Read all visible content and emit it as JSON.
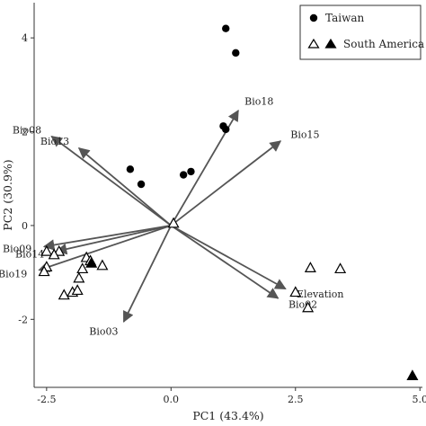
{
  "chart_data": {
    "type": "scatter",
    "xlabel": "PC1 (43.4%)",
    "ylabel": "PC2 (30.9%)",
    "xlim": [
      -2.75,
      5.05
    ],
    "ylim": [
      -3.45,
      4.75
    ],
    "x_ticks": [
      {
        "value": -2.5,
        "label": "-2.5"
      },
      {
        "value": 0.0,
        "label": "0.0"
      },
      {
        "value": 2.5,
        "label": "2.5"
      },
      {
        "value": 5.0,
        "label": "5.0"
      }
    ],
    "y_ticks": [
      {
        "value": 4,
        "label": "4"
      },
      {
        "value": 2,
        "label": "2"
      },
      {
        "value": 0,
        "label": "0"
      },
      {
        "value": -2,
        "label": "-2"
      }
    ],
    "grid": false,
    "legend_position": "top-right",
    "legend": [
      {
        "marker": "filled-circle",
        "label": "Taiwan"
      },
      {
        "marker": "open-and-filled-triangle",
        "label": "South America"
      }
    ],
    "colors": {
      "points": "#000000",
      "arrows": "#555555",
      "axes": "#333333"
    },
    "series": [
      {
        "name": "Taiwan",
        "marker": "filled-circle",
        "points": [
          {
            "x": 1.1,
            "y": 4.2
          },
          {
            "x": 1.3,
            "y": 3.68
          },
          {
            "x": 1.05,
            "y": 2.12
          },
          {
            "x": 1.1,
            "y": 2.05
          },
          {
            "x": -0.82,
            "y": 1.2
          },
          {
            "x": -0.6,
            "y": 0.88
          },
          {
            "x": 0.25,
            "y": 1.08
          },
          {
            "x": 0.4,
            "y": 1.15
          }
        ]
      },
      {
        "name": "South America",
        "marker": "open-triangle",
        "points": [
          {
            "x": 0.05,
            "y": 0.05
          },
          {
            "x": -2.25,
            "y": -0.55
          },
          {
            "x": -2.5,
            "y": -0.55
          },
          {
            "x": -2.35,
            "y": -0.62
          },
          {
            "x": -2.5,
            "y": -0.88
          },
          {
            "x": -2.55,
            "y": -0.98
          },
          {
            "x": -1.7,
            "y": -0.68
          },
          {
            "x": -1.62,
            "y": -0.75
          },
          {
            "x": -1.38,
            "y": -0.85
          },
          {
            "x": -1.78,
            "y": -0.92
          },
          {
            "x": -1.85,
            "y": -1.12
          },
          {
            "x": -1.98,
            "y": -1.42
          },
          {
            "x": -2.15,
            "y": -1.48
          },
          {
            "x": -1.88,
            "y": -1.38
          },
          {
            "x": 2.8,
            "y": -0.9
          },
          {
            "x": 3.4,
            "y": -0.92
          },
          {
            "x": 2.5,
            "y": -1.42
          },
          {
            "x": 2.75,
            "y": -1.75
          }
        ]
      },
      {
        "name": "South America",
        "marker": "filled-triangle",
        "points": [
          {
            "x": -1.6,
            "y": -0.8
          },
          {
            "x": 4.85,
            "y": -3.2
          }
        ]
      }
    ],
    "vectors": [
      {
        "label": "Bio18",
        "x": 1.35,
        "y": 2.45
      },
      {
        "label": "Bio15",
        "x": 2.2,
        "y": 1.8
      },
      {
        "label": "Bio08",
        "x": -2.4,
        "y": 1.9
      },
      {
        "label": "Bio13",
        "x": -1.85,
        "y": 1.65
      },
      {
        "label": "Bio09",
        "x": -2.55,
        "y": -0.45
      },
      {
        "label": "Bio14",
        "x": -2.3,
        "y": -0.55
      },
      {
        "label": "Bio19",
        "x": -2.65,
        "y": -0.95
      },
      {
        "label": "Bio03",
        "x": -0.95,
        "y": -2.05
      },
      {
        "label": "Bio02",
        "x": 2.15,
        "y": -1.55
      },
      {
        "label": "Elevation",
        "x": 2.3,
        "y": -1.35
      }
    ]
  }
}
